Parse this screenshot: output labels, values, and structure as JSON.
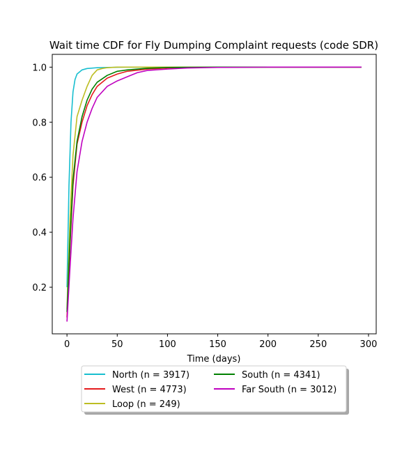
{
  "chart_data": {
    "type": "line",
    "title": "Wait time CDF for Fly Dumping Complaint  requests (code SDR)",
    "xlabel": "Time (days)",
    "ylabel": "",
    "xlim": [
      -14.65,
      307.65
    ],
    "ylim": [
      0.0305,
      1.0465
    ],
    "x_ticks": [
      0,
      50,
      100,
      150,
      200,
      250,
      300
    ],
    "y_ticks": [
      0.2,
      0.4,
      0.6,
      0.8,
      1.0
    ],
    "x_tick_labels": [
      "0",
      "50",
      "100",
      "150",
      "200",
      "250",
      "300"
    ],
    "y_tick_labels": [
      "0.2",
      "0.4",
      "0.6",
      "0.8",
      "1.0"
    ],
    "grid": false,
    "legend_placement": "below plot, two columns",
    "series": [
      {
        "name": "North (n = 3917)",
        "color": "#17becf",
        "x": [
          0,
          2,
          4,
          6,
          8,
          10,
          15,
          20,
          30,
          40,
          60,
          100,
          150,
          200,
          250,
          293
        ],
        "y": [
          0.2,
          0.57,
          0.8,
          0.91,
          0.955,
          0.975,
          0.99,
          0.995,
          0.998,
          0.999,
          1.0,
          1.0,
          1.0,
          1.0,
          1.0,
          1.0
        ]
      },
      {
        "name": "West (n = 4773)",
        "color": "#e41a1c",
        "x": [
          0,
          3,
          6,
          10,
          15,
          20,
          25,
          30,
          40,
          50,
          60,
          80,
          100,
          150,
          200,
          250,
          293
        ],
        "y": [
          0.09,
          0.35,
          0.57,
          0.72,
          0.8,
          0.86,
          0.9,
          0.93,
          0.96,
          0.975,
          0.985,
          0.993,
          0.997,
          1.0,
          1.0,
          1.0,
          1.0
        ]
      },
      {
        "name": "Loop (n = 249)",
        "color": "#bcbd22",
        "x": [
          0,
          3,
          6,
          10,
          15,
          20,
          25,
          30,
          35,
          40,
          50,
          100,
          150,
          200,
          250,
          293
        ],
        "y": [
          0.12,
          0.45,
          0.68,
          0.82,
          0.88,
          0.93,
          0.97,
          0.99,
          0.995,
          0.998,
          1.0,
          1.0,
          1.0,
          1.0,
          1.0,
          1.0
        ]
      },
      {
        "name": "South (n = 4341)",
        "color": "#008000",
        "x": [
          0,
          3,
          6,
          10,
          15,
          20,
          25,
          30,
          40,
          50,
          60,
          80,
          100,
          150,
          200,
          250,
          293
        ],
        "y": [
          0.11,
          0.37,
          0.59,
          0.73,
          0.82,
          0.88,
          0.92,
          0.945,
          0.97,
          0.985,
          0.99,
          0.996,
          0.999,
          1.0,
          1.0,
          1.0,
          1.0
        ]
      },
      {
        "name": "Far South (n = 3012)",
        "color": "#bf00bf",
        "x": [
          0,
          3,
          6,
          10,
          15,
          20,
          25,
          30,
          40,
          50,
          60,
          70,
          80,
          100,
          120,
          150,
          200,
          250,
          293
        ],
        "y": [
          0.075,
          0.27,
          0.45,
          0.62,
          0.73,
          0.8,
          0.85,
          0.89,
          0.93,
          0.95,
          0.965,
          0.98,
          0.988,
          0.993,
          0.997,
          0.999,
          1.0,
          1.0,
          1.0
        ]
      }
    ]
  }
}
